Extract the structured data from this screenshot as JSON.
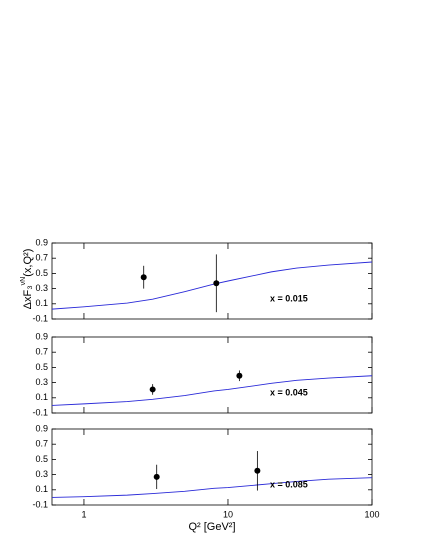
{
  "chart_data": [
    {
      "type": "line",
      "y_label": [
        "ΔxF₃",
        "νN",
        "(x,Q²)"
      ],
      "annotation": "x = 0.015",
      "x": [
        0.6,
        1,
        2,
        3,
        5,
        8,
        10,
        20,
        30,
        50,
        100
      ],
      "series": [
        {
          "color": "#2a2ad8",
          "values": [
            0.03,
            0.06,
            0.11,
            0.16,
            0.26,
            0.36,
            0.4,
            0.52,
            0.57,
            0.61,
            0.65
          ]
        }
      ],
      "points": {
        "x": [
          2.6,
          8.3
        ],
        "values": [
          0.45,
          0.37
        ],
        "errors": [
          0.15,
          0.38
        ]
      },
      "log_x": true,
      "xlim": [
        0.6,
        100
      ],
      "xticks": [
        1,
        10,
        100
      ],
      "ylim": [
        -0.1,
        0.9
      ],
      "yticks": [
        -0.1,
        0.1,
        0.3,
        0.5,
        0.7,
        0.9
      ]
    },
    {
      "type": "line",
      "annotation": "x = 0.045",
      "x": [
        0.6,
        1,
        2,
        3,
        5,
        8,
        10,
        20,
        30,
        50,
        100
      ],
      "series": [
        {
          "color": "#2a2ad8",
          "values": [
            0.0,
            0.02,
            0.05,
            0.08,
            0.13,
            0.19,
            0.21,
            0.29,
            0.33,
            0.36,
            0.39
          ]
        }
      ],
      "points": {
        "x": [
          3.0,
          12
        ],
        "values": [
          0.21,
          0.39
        ],
        "errors": [
          0.07,
          0.07
        ]
      },
      "log_x": true,
      "xlim": [
        0.6,
        100
      ],
      "xticks": [
        1,
        10,
        100
      ],
      "ylim": [
        -0.1,
        0.9
      ],
      "yticks": [
        -0.1,
        0.1,
        0.3,
        0.5,
        0.7,
        0.9
      ]
    },
    {
      "type": "line",
      "annotation": "x = 0.085",
      "x_label": "Q² [GeV²]",
      "x": [
        0.6,
        1,
        2,
        3,
        5,
        8,
        10,
        20,
        30,
        50,
        100
      ],
      "series": [
        {
          "color": "#2a2ad8",
          "values": [
            0.0,
            0.01,
            0.03,
            0.05,
            0.08,
            0.12,
            0.13,
            0.18,
            0.21,
            0.24,
            0.26
          ]
        }
      ],
      "points": {
        "x": [
          3.2,
          16
        ],
        "values": [
          0.27,
          0.35
        ],
        "errors": [
          0.16,
          0.26
        ]
      },
      "log_x": true,
      "xlim": [
        0.6,
        100
      ],
      "xticks": [
        1,
        10,
        100
      ],
      "ylim": [
        -0.1,
        0.9
      ],
      "yticks": [
        -0.1,
        0.1,
        0.3,
        0.5,
        0.7,
        0.9
      ]
    }
  ]
}
